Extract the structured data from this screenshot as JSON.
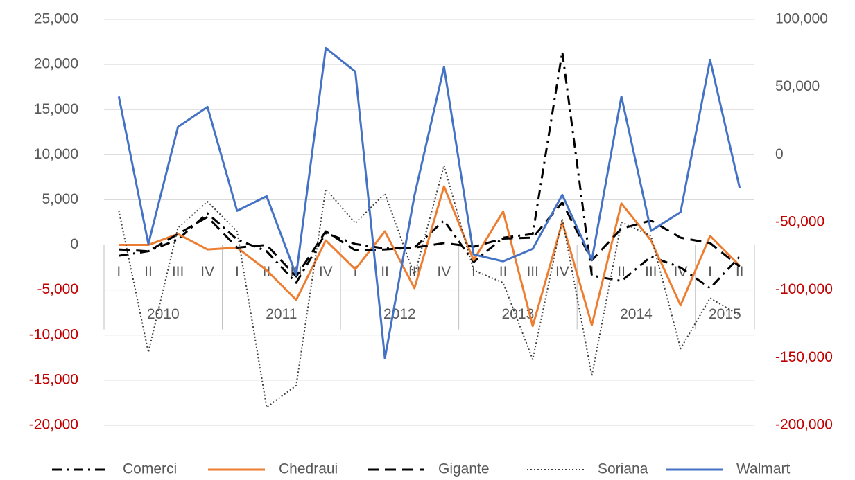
{
  "chart_data": {
    "type": "line",
    "categories": [
      "I",
      "II",
      "III",
      "IV",
      "I",
      "II",
      "III",
      "IV",
      "I",
      "II",
      "III",
      "IV",
      "I",
      "II",
      "III",
      "IV",
      "I",
      "II",
      "III",
      "IV",
      "I",
      "II"
    ],
    "x_groups": [
      "2010",
      "2011",
      "2012",
      "2013",
      "2014",
      "2015"
    ],
    "x_group_sizes": [
      4,
      4,
      4,
      4,
      4,
      2
    ],
    "ylim": [
      -20000,
      25000
    ],
    "yticks": [
      {
        "value": -20000,
        "label": "-20,000"
      },
      {
        "value": -15000,
        "label": "-15,000"
      },
      {
        "value": -10000,
        "label": "-10,000"
      },
      {
        "value": -5000,
        "label": "-5,000"
      },
      0,
      {
        "value": 5000,
        "label": "5,000"
      },
      {
        "value": 10000,
        "label": "10,000"
      },
      {
        "value": 15000,
        "label": "15,000"
      },
      {
        "value": 20000,
        "label": "20,000"
      },
      {
        "value": 25000,
        "label": "25,000"
      }
    ],
    "y2lim": [
      -200000,
      100000
    ],
    "y2ticks": [
      {
        "value": -200000,
        "label": "-200,000"
      },
      {
        "value": -150000,
        "label": "-150,000"
      },
      {
        "value": -100000,
        "label": "-100,000"
      },
      {
        "value": -50000,
        "label": "-50,000"
      },
      0,
      {
        "value": 50000,
        "label": "50,000"
      },
      {
        "value": 100000,
        "label": "100,000"
      }
    ],
    "negative_tick_color": "#c00000",
    "grid": true,
    "legend": "bottom",
    "series": [
      {
        "name": "Comerci",
        "color": "#000000",
        "dash": "dashdot",
        "values": [
          -1200,
          -700,
          600,
          3500,
          600,
          -700,
          -4200,
          1300,
          100,
          -400,
          -300,
          2700,
          -1900,
          800,
          1200,
          21400,
          -3400,
          -4000,
          -1300,
          -2500,
          -4800,
          -1300
        ]
      },
      {
        "name": "Chedraui",
        "color": "#ed7d31",
        "dash": "solid",
        "values": [
          0,
          0,
          1200,
          -500,
          -300,
          -2800,
          -6100,
          500,
          -2700,
          1500,
          -4800,
          6500,
          -1700,
          3700,
          -9000,
          2500,
          -8900,
          4600,
          500,
          -6700,
          1000,
          -2300
        ]
      },
      {
        "name": "Gigante",
        "color": "#000000",
        "dash": "dash",
        "values": [
          -500,
          -700,
          1200,
          3100,
          -300,
          0,
          -3500,
          1500,
          -600,
          -500,
          -300,
          200,
          -200,
          700,
          800,
          4700,
          -1700,
          1800,
          2700,
          800,
          200,
          -2400
        ]
      },
      {
        "name": "Soriana",
        "color": "#404040",
        "dash": "dot",
        "values": [
          3800,
          -11900,
          1900,
          4800,
          1500,
          -18000,
          -15600,
          6200,
          2400,
          5700,
          -3400,
          8800,
          -2800,
          -4200,
          -12700,
          2900,
          -14500,
          2500,
          1000,
          -11500,
          -5900,
          -7800
        ]
      },
      {
        "name": "Walmart",
        "color": "#4472c4",
        "dash": "solid",
        "axis": "y2",
        "values": [
          43000,
          -66000,
          20500,
          35300,
          -41500,
          -30700,
          -89000,
          78800,
          61400,
          -150500,
          -30200,
          65000,
          -73700,
          -78800,
          -69600,
          -29700,
          -77800,
          43000,
          -56300,
          -42500,
          70100,
          -24600
        ]
      }
    ]
  }
}
